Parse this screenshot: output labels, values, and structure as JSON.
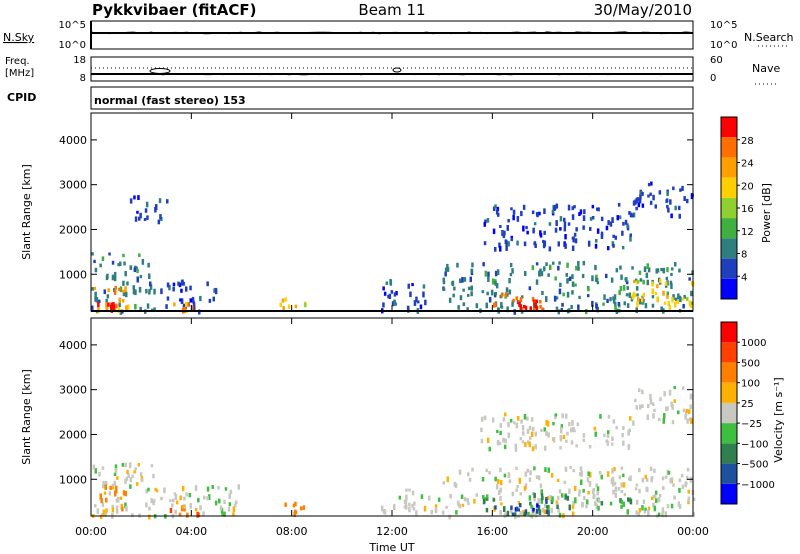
{
  "header": {
    "station": "Pykkvibaer (fitACF)",
    "beam": "Beam 11",
    "date": "30/May/2010"
  },
  "summary": {
    "nsky_label": "N.Sky",
    "nsky_ticks": [
      "10^5",
      "10^0"
    ],
    "nsearch_label": "N.Search",
    "nsearch_ticks": [
      "10^5",
      "10^0"
    ],
    "freq_label_1": "Freq.",
    "freq_label_2": "[MHz]",
    "freq_ticks": [
      "18",
      "8"
    ],
    "nave_label": "Nave",
    "nave_ticks": [
      "60",
      "0"
    ],
    "cpid_label": "CPID",
    "cpid_text": "normal (fast stereo) 153"
  },
  "colors": {
    "power_scale": [
      "#0000ff",
      "#1f3fbf",
      "#2f7f7f",
      "#3faf3f",
      "#8fcf2f",
      "#ffcf00",
      "#ff9f00",
      "#ff6f00",
      "#ff0000"
    ],
    "velocity_scale": [
      "#0000ff",
      "#1f4f9f",
      "#2f7f4f",
      "#3fbf3f",
      "#c8c8c0",
      "#ffb000",
      "#ff8000",
      "#ff4000",
      "#ff0000"
    ]
  },
  "chart_data": [
    {
      "type": "heatmap",
      "panel": "power",
      "ylabel": "Slant Range [km]",
      "yticks": [
        "4000",
        "3000",
        "2000",
        "1000"
      ],
      "ylim": [
        180,
        4600
      ],
      "colorbar_label": "Power [dB]",
      "colorbar_ticks": [
        "28",
        "24",
        "20",
        "16",
        "12",
        "8",
        "4"
      ],
      "clim": [
        0,
        32
      ],
      "regions": [
        {
          "t": [
            0.0,
            2.5
          ],
          "r": [
            200,
            1500
          ],
          "level": 2
        },
        {
          "t": [
            0.1,
            1.5
          ],
          "r": [
            200,
            800
          ],
          "level": 6
        },
        {
          "t": [
            0.2,
            1.0
          ],
          "r": [
            200,
            400
          ],
          "level": 8
        },
        {
          "t": [
            1.5,
            3.0
          ],
          "r": [
            2200,
            2800
          ],
          "level": 1
        },
        {
          "t": [
            2.5,
            5.0
          ],
          "r": [
            200,
            900
          ],
          "level": 1
        },
        {
          "t": [
            3.0,
            4.0
          ],
          "r": [
            200,
            400
          ],
          "level": 6
        },
        {
          "t": [
            7.5,
            8.5
          ],
          "r": [
            250,
            500
          ],
          "level": 5
        },
        {
          "t": [
            11.5,
            13.5
          ],
          "r": [
            200,
            900
          ],
          "level": 1
        },
        {
          "t": [
            14.0,
            24.0
          ],
          "r": [
            200,
            1300
          ],
          "level": 2
        },
        {
          "t": [
            16.0,
            18.0
          ],
          "r": [
            220,
            600
          ],
          "level": 7
        },
        {
          "t": [
            17.0,
            18.0
          ],
          "r": [
            250,
            450
          ],
          "level": 8
        },
        {
          "t": [
            15.5,
            21.5
          ],
          "r": [
            1600,
            2600
          ],
          "level": 1
        },
        {
          "t": [
            21.5,
            24.0
          ],
          "r": [
            2300,
            3100
          ],
          "level": 1
        },
        {
          "t": [
            21.5,
            24.0
          ],
          "r": [
            300,
            900
          ],
          "level": 5
        }
      ]
    },
    {
      "type": "heatmap",
      "panel": "velocity",
      "ylabel": "Slant Range [km]",
      "yticks": [
        "4000",
        "3000",
        "2000",
        "1000"
      ],
      "ylim": [
        180,
        4600
      ],
      "xlabel": "Time UT",
      "xticks": [
        "00:00",
        "04:00",
        "08:00",
        "12:00",
        "16:00",
        "20:00",
        "00:00"
      ],
      "xlim": [
        0,
        24
      ],
      "colorbar_label": "Velocity [m s⁻¹]",
      "colorbar_ticks": [
        "1000",
        "500",
        "100",
        "25",
        "−25",
        "−100",
        "−500",
        "−1000"
      ],
      "regions": [
        {
          "t": [
            0.0,
            2.5
          ],
          "r": [
            200,
            1400
          ],
          "level": 4
        },
        {
          "t": [
            0.2,
            1.5
          ],
          "r": [
            300,
            900
          ],
          "level": 6
        },
        {
          "t": [
            2.5,
            6.0
          ],
          "r": [
            200,
            900
          ],
          "level": 4
        },
        {
          "t": [
            3.0,
            4.5
          ],
          "r": [
            250,
            500
          ],
          "level": 6
        },
        {
          "t": [
            7.5,
            8.5
          ],
          "r": [
            250,
            500
          ],
          "level": 6
        },
        {
          "t": [
            11.5,
            14.0
          ],
          "r": [
            250,
            800
          ],
          "level": 4
        },
        {
          "t": [
            14.0,
            24.0
          ],
          "r": [
            200,
            1300
          ],
          "level": 4
        },
        {
          "t": [
            15.5,
            19.0
          ],
          "r": [
            250,
            700
          ],
          "level": 2
        },
        {
          "t": [
            16.0,
            18.0
          ],
          "r": [
            250,
            500
          ],
          "level": 1
        },
        {
          "t": [
            19.0,
            22.5
          ],
          "r": [
            300,
            600
          ],
          "level": 3
        },
        {
          "t": [
            15.5,
            21.5
          ],
          "r": [
            1700,
            2500
          ],
          "level": 4
        },
        {
          "t": [
            21.5,
            24.0
          ],
          "r": [
            2300,
            3100
          ],
          "level": 4
        }
      ]
    }
  ]
}
